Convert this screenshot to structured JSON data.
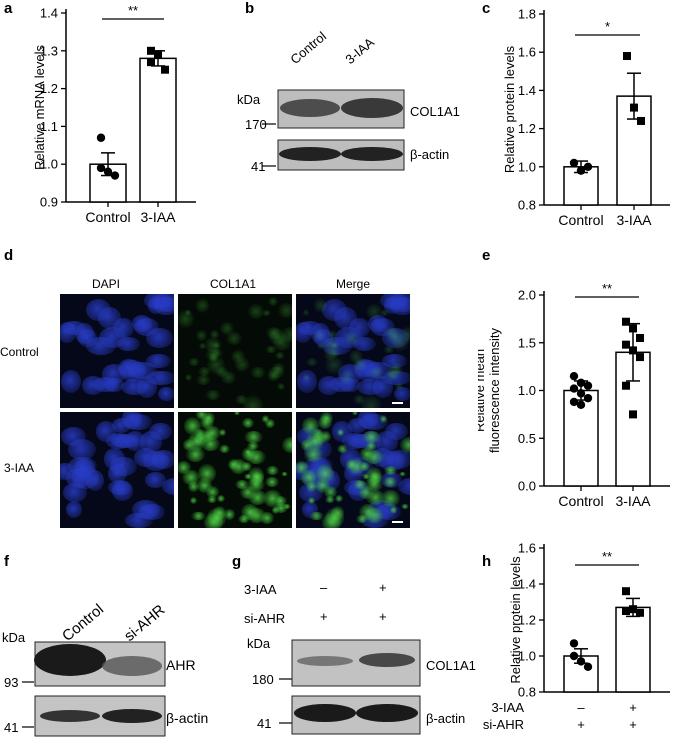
{
  "panels": {
    "a": {
      "letter": "a",
      "ylabel": "Relative mRNA levels",
      "categories": [
        "Control",
        "3-IAA"
      ],
      "sig": "**",
      "yticks": [
        "0.9",
        "1.0",
        "1.1",
        "1.2",
        "1.3",
        "1.4"
      ]
    },
    "b": {
      "letter": "b",
      "lanes": [
        "Control",
        "3-IAA"
      ],
      "kda": "kDa",
      "mw": [
        "170",
        "41"
      ],
      "bands": [
        "COL1A1",
        "β-actin"
      ]
    },
    "c": {
      "letter": "c",
      "ylabel": "Relative protein levels",
      "categories": [
        "Control",
        "3-IAA"
      ],
      "sig": "*",
      "yticks": [
        "0.8",
        "1.0",
        "1.2",
        "1.4",
        "1.6",
        "1.8"
      ]
    },
    "d": {
      "letter": "d",
      "columns": [
        "DAPI",
        "COL1A1",
        "Merge"
      ],
      "rows": [
        "Control",
        "3-IAA"
      ]
    },
    "e": {
      "letter": "e",
      "ylabel_line1": "Relative mean",
      "ylabel_line2": "fluorescence intensity",
      "categories": [
        "Control",
        "3-IAA"
      ],
      "sig": "**",
      "yticks": [
        "0.0",
        "0.5",
        "1.0",
        "1.5",
        "2.0"
      ]
    },
    "f": {
      "letter": "f",
      "lanes": [
        "Control",
        "si-AHR"
      ],
      "kda": "kDa",
      "mw": [
        "93",
        "41"
      ],
      "bands": [
        "AHR",
        "β-actin"
      ]
    },
    "g": {
      "letter": "g",
      "conditions": [
        {
          "label": "3-IAA",
          "values": [
            "–",
            "+"
          ]
        },
        {
          "label": "si-AHR",
          "values": [
            "+",
            "+"
          ]
        }
      ],
      "kda": "kDa",
      "mw": [
        "180",
        "41"
      ],
      "bands": [
        "COL1A1",
        "β-actin"
      ]
    },
    "h": {
      "letter": "h",
      "ylabel": "Relative protein levels",
      "sig": "**",
      "conditions": [
        {
          "label": "3-IAA",
          "values": [
            "–",
            "+"
          ]
        },
        {
          "label": "si-AHR",
          "values": [
            "+",
            "+"
          ]
        }
      ],
      "yticks": [
        "0.8",
        "1.0",
        "1.2",
        "1.4",
        "1.6"
      ]
    }
  },
  "chart_data": [
    {
      "panel": "a",
      "type": "bar",
      "categories": [
        "Control",
        "3-IAA"
      ],
      "values": [
        1.0,
        1.28
      ],
      "errors": [
        0.03,
        0.02
      ],
      "points": [
        [
          1.07,
          0.98,
          0.97,
          0.99
        ],
        [
          1.3,
          1.29,
          1.25,
          1.27
        ]
      ],
      "ylabel": "Relative mRNA levels",
      "ylim": [
        0.9,
        1.4
      ]
    },
    {
      "panel": "c",
      "type": "bar",
      "categories": [
        "Control",
        "3-IAA"
      ],
      "values": [
        1.0,
        1.37
      ],
      "errors": [
        0.03,
        0.12
      ],
      "points": [
        [
          1.02,
          0.98,
          1.0
        ],
        [
          1.58,
          1.31,
          1.24
        ]
      ],
      "ylabel": "Relative protein levels",
      "ylim": [
        0.8,
        1.8
      ]
    },
    {
      "panel": "e",
      "type": "bar",
      "categories": [
        "Control",
        "3-IAA"
      ],
      "values": [
        1.0,
        1.4
      ],
      "errors": [
        0.1,
        0.3
      ],
      "points": [
        [
          1.15,
          1.08,
          1.05,
          1.02,
          0.97,
          0.92,
          0.88,
          0.85
        ],
        [
          1.72,
          1.65,
          1.55,
          1.48,
          1.42,
          1.35,
          1.05,
          0.75
        ]
      ],
      "ylabel": "Relative mean fluorescence intensity",
      "ylim": [
        0.0,
        2.0
      ]
    },
    {
      "panel": "h",
      "type": "bar",
      "categories": [
        "– / +",
        "+ / +"
      ],
      "values": [
        1.0,
        1.27
      ],
      "errors": [
        0.04,
        0.05
      ],
      "points": [
        [
          1.07,
          0.97,
          0.94,
          1.0
        ],
        [
          1.36,
          1.26,
          1.24,
          1.25
        ]
      ],
      "ylabel": "Relative protein levels",
      "ylim": [
        0.8,
        1.6
      ]
    }
  ]
}
